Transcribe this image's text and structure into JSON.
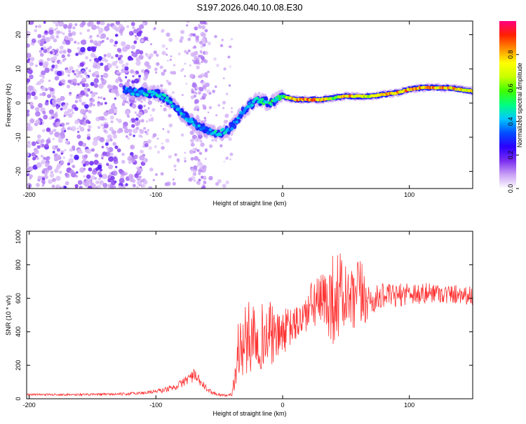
{
  "title": "S197.2026.040.10.08.E30",
  "chart_data": [
    {
      "type": "heatmap",
      "title": "S197.2026.040.10.08.E30",
      "xlabel": "Height of straight line (km)",
      "ylabel": "Frequency (Hz)",
      "xlim": [
        -202,
        150
      ],
      "ylim": [
        -25,
        24
      ],
      "xticks": [
        -200,
        -100,
        0,
        100
      ],
      "yticks": [
        20,
        10,
        0,
        -10,
        -20
      ],
      "colorbar": {
        "label": "Normalized spectral amplitude",
        "range": [
          0,
          1
        ],
        "ticks": [
          0.0,
          0.2,
          0.4,
          0.6,
          0.8
        ],
        "colors": [
          "#ffffff",
          "#c9a0f5",
          "#7a2df0",
          "#2a00ff",
          "#0050ff",
          "#00c8ff",
          "#00ff80",
          "#40ff00",
          "#c8ff00",
          "#ffff00",
          "#ff9000",
          "#ff2000",
          "#ff0080"
        ]
      },
      "ridge": {
        "x": [
          -125,
          -115,
          -100,
          -90,
          -80,
          -70,
          -60,
          -50,
          -45,
          -40,
          -30,
          -20,
          -10,
          0,
          10,
          20,
          30,
          40,
          50,
          60,
          70,
          80,
          90,
          100,
          110,
          120,
          130,
          140,
          150
        ],
        "freq": [
          4,
          3,
          3,
          1,
          -3,
          -6,
          -8,
          -9,
          -8,
          -7,
          -2,
          1,
          0,
          2,
          1,
          1,
          1,
          1.5,
          2,
          2,
          2,
          2.5,
          3,
          4,
          4.5,
          4.5,
          4.5,
          4,
          3.5
        ],
        "amplitude": [
          0.4,
          0.45,
          0.5,
          0.45,
          0.45,
          0.45,
          0.4,
          0.5,
          0.45,
          0.4,
          0.45,
          0.5,
          0.55,
          0.55,
          0.95,
          0.95,
          0.92,
          0.6,
          0.9,
          0.85,
          0.7,
          0.9,
          0.9,
          0.92,
          0.9,
          0.88,
          0.88,
          0.85,
          0.8
        ]
      }
    },
    {
      "type": "line",
      "xlabel": "Height of straight line (km)",
      "ylabel": "SNR (10 * v/v)",
      "xlim": [
        -202,
        150
      ],
      "ylim": [
        0,
        1000
      ],
      "xticks": [
        -200,
        -100,
        0,
        100
      ],
      "yticks": [
        0,
        200,
        400,
        600,
        800,
        1000
      ],
      "series": [
        {
          "name": "SNR",
          "color": "#ff3333",
          "x": [
            -200,
            -175,
            -150,
            -125,
            -110,
            -95,
            -85,
            -80,
            -75,
            -70,
            -65,
            -60,
            -55,
            -50,
            -45,
            -40,
            -37,
            -35,
            -30,
            -25,
            -20,
            -15,
            -10,
            -5,
            0,
            5,
            10,
            15,
            20,
            25,
            30,
            35,
            40,
            45,
            50,
            55,
            60,
            65,
            70,
            75,
            80,
            90,
            100,
            110,
            120,
            130,
            140,
            150
          ],
          "y": [
            25,
            25,
            25,
            28,
            35,
            50,
            70,
            90,
            120,
            140,
            100,
            60,
            35,
            25,
            20,
            25,
            150,
            300,
            330,
            380,
            420,
            360,
            390,
            360,
            400,
            420,
            440,
            480,
            520,
            580,
            560,
            590,
            600,
            620,
            600,
            560,
            610,
            600,
            580,
            600,
            620,
            610,
            640,
            620,
            640,
            620,
            630,
            610
          ],
          "spread": [
            6,
            6,
            7,
            8,
            10,
            14,
            18,
            25,
            35,
            40,
            30,
            18,
            10,
            8,
            6,
            8,
            120,
            180,
            220,
            220,
            260,
            180,
            200,
            140,
            140,
            120,
            110,
            110,
            130,
            160,
            180,
            220,
            280,
            280,
            200,
            200,
            260,
            160,
            90,
            80,
            70,
            70,
            70,
            70,
            60,
            60,
            60,
            60
          ]
        }
      ]
    }
  ]
}
